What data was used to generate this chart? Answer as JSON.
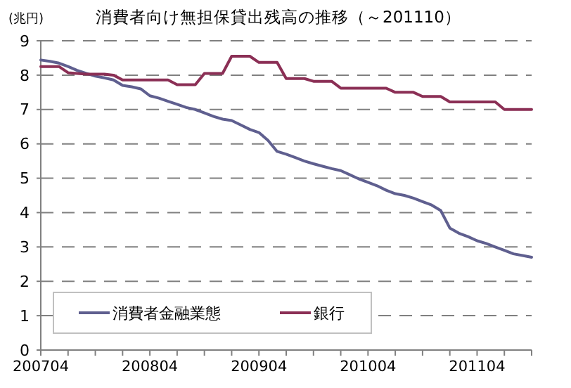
{
  "chart_data": {
    "type": "line",
    "title": "消費者向け無担保貸出残高の推移（～201110）",
    "ylabel": "(兆円)",
    "categories": [
      "200704",
      null,
      null,
      null,
      null,
      null,
      null,
      null,
      null,
      null,
      null,
      null,
      "200804",
      null,
      null,
      null,
      null,
      null,
      null,
      null,
      null,
      null,
      null,
      null,
      "200904",
      null,
      null,
      null,
      null,
      null,
      null,
      null,
      null,
      null,
      null,
      null,
      "201004",
      null,
      null,
      null,
      null,
      null,
      null,
      null,
      null,
      null,
      null,
      null,
      "201104",
      null,
      null,
      null,
      null,
      null,
      null
    ],
    "series": [
      {
        "name": "消費者金融業態",
        "color": "#5f5f8f",
        "values": [
          8.44,
          8.4,
          8.35,
          8.25,
          8.14,
          8.05,
          7.97,
          7.92,
          7.86,
          7.7,
          7.66,
          7.6,
          7.4,
          7.33,
          7.24,
          7.15,
          7.06,
          7.0,
          6.9,
          6.8,
          6.72,
          6.68,
          6.55,
          6.42,
          6.33,
          6.1,
          5.78,
          5.7,
          5.6,
          5.5,
          5.42,
          5.35,
          5.28,
          5.22,
          5.1,
          4.98,
          4.88,
          4.78,
          4.65,
          4.55,
          4.5,
          4.42,
          4.32,
          4.22,
          4.06,
          3.55,
          3.4,
          3.3,
          3.18,
          3.1,
          3.0,
          2.9,
          2.8,
          2.75,
          2.7
        ]
      },
      {
        "name": "銀行",
        "color": "#8b2f55",
        "values": [
          8.25,
          8.25,
          8.25,
          8.07,
          8.05,
          8.03,
          8.03,
          8.03,
          8.0,
          7.86,
          7.86,
          7.86,
          7.86,
          7.86,
          7.86,
          7.72,
          7.72,
          7.72,
          8.05,
          8.05,
          8.05,
          8.55,
          8.55,
          8.55,
          8.37,
          8.37,
          8.37,
          7.9,
          7.9,
          7.9,
          7.82,
          7.82,
          7.82,
          7.62,
          7.62,
          7.62,
          7.62,
          7.62,
          7.62,
          7.5,
          7.5,
          7.5,
          7.38,
          7.38,
          7.38,
          7.22,
          7.22,
          7.22,
          7.22,
          7.22,
          7.22,
          7.0,
          7.0,
          7.0,
          7.0
        ]
      }
    ],
    "ylim": [
      0,
      9
    ],
    "yticks": [
      0,
      1,
      2,
      3,
      4,
      5,
      6,
      7,
      8,
      9
    ],
    "grid": "y",
    "legend": "bottom left",
    "marker": "none",
    "line_style": "solid"
  }
}
